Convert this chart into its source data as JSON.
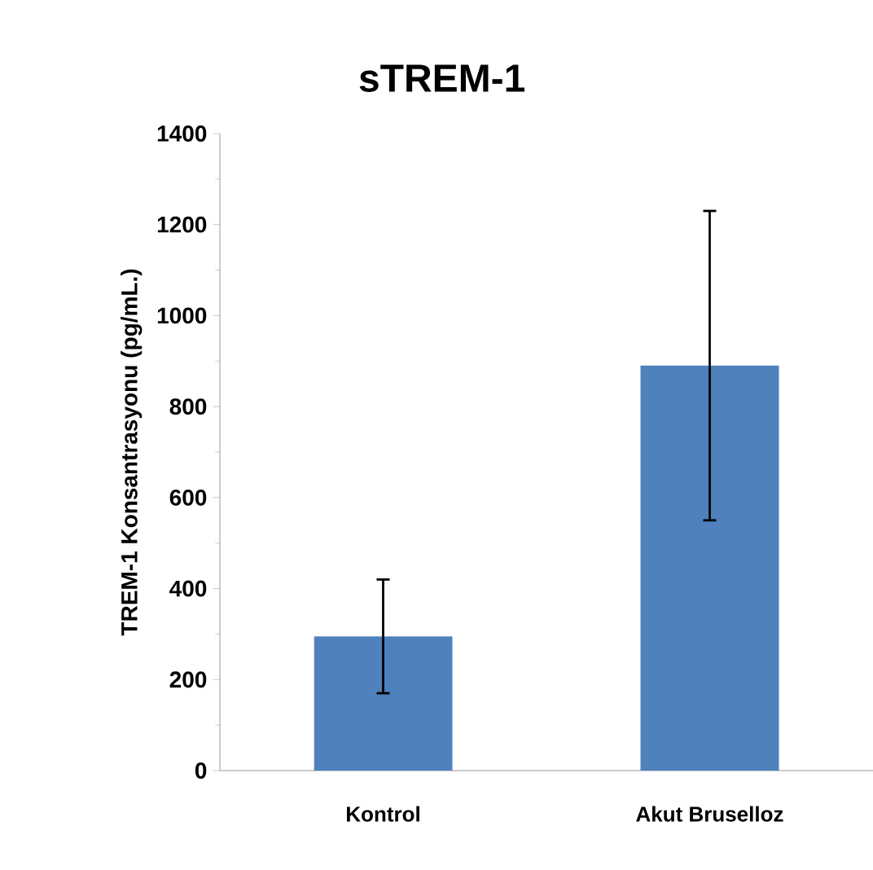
{
  "chart_data": {
    "type": "bar",
    "title": "sTREM-1",
    "ylabel": "TREM-1 Konsantrasyonu (pg/mL.)",
    "categories": [
      "Kontrol",
      "Akut Bruselloz"
    ],
    "values": [
      295,
      890
    ],
    "errors": [
      125,
      340
    ],
    "color": "#4f81bd",
    "ylim": [
      0,
      1400
    ],
    "yticks": [
      0,
      200,
      400,
      600,
      800,
      1000,
      1200,
      1400
    ],
    "grid": false
  }
}
